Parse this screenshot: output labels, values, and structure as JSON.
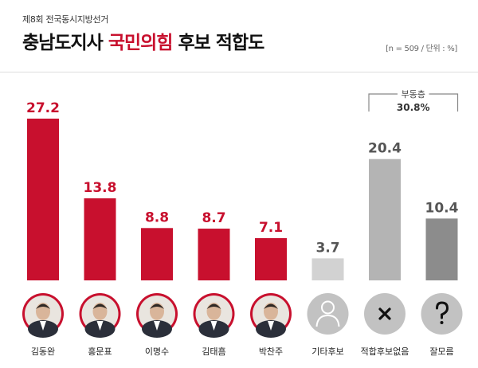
{
  "header": {
    "super_title": "제8회 전국동시지방선거",
    "title_prefix": "충남도지사",
    "title_accent": "국민의힘",
    "title_suffix": "후보 적합도",
    "note": "[n = 509 / 단위 : %]"
  },
  "bracket": {
    "label": "부동층",
    "value": "30.8%"
  },
  "colors": {
    "candidate": "#c8102e",
    "other": "#d2d2d2",
    "none": "#b4b4b4",
    "dontknow": "#8c8c8c",
    "avatar_ring": "#c8102e",
    "placeholder_bg": "#c2c2c2"
  },
  "chart_data": {
    "type": "bar",
    "categories": [
      "김동완",
      "홍문표",
      "이명수",
      "김태흠",
      "박찬주",
      "기타후보",
      "적합후보없음",
      "잘모름"
    ],
    "values": [
      27.2,
      13.8,
      8.8,
      8.7,
      7.1,
      3.7,
      20.4,
      10.4
    ],
    "value_labels": [
      "27.2",
      "13.8",
      "8.8",
      "8.7",
      "7.1",
      "3.7",
      "20.4",
      "10.4"
    ],
    "bar_colors": [
      "#c8102e",
      "#c8102e",
      "#c8102e",
      "#c8102e",
      "#c8102e",
      "#d2d2d2",
      "#b4b4b4",
      "#8c8c8c"
    ],
    "label_colors": [
      "#c8102e",
      "#c8102e",
      "#c8102e",
      "#c8102e",
      "#c8102e",
      "#555555",
      "#555555",
      "#555555"
    ],
    "avatar_kind": [
      "photo",
      "photo",
      "photo",
      "photo",
      "photo",
      "person-icon",
      "x-icon",
      "question-icon"
    ],
    "ylim": [
      0,
      30
    ],
    "grid": false,
    "legend": "none",
    "xlabel": "",
    "ylabel": ""
  }
}
